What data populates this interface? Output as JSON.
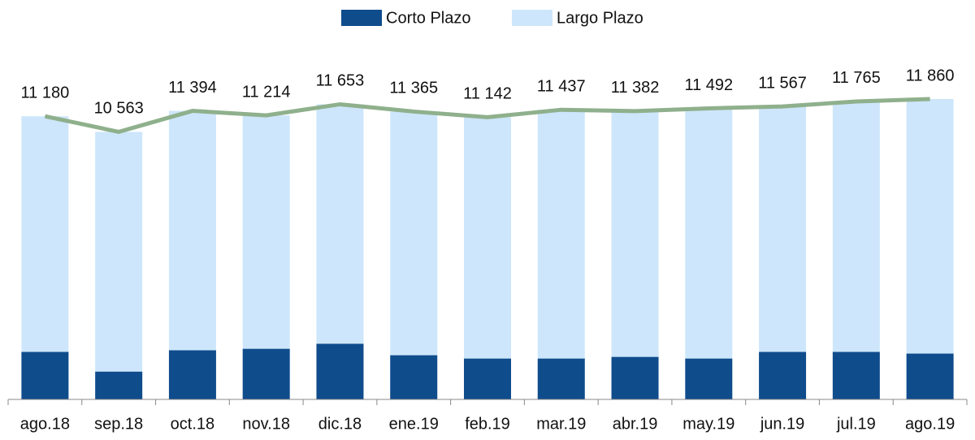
{
  "chart_data": {
    "type": "bar",
    "stacked": true,
    "categories": [
      "ago.18",
      "sep.18",
      "oct.18",
      "nov.18",
      "dic.18",
      "ene.19",
      "feb.19",
      "mar.19",
      "abr.19",
      "may.19",
      "jun.19",
      "jul.19",
      "ago.19"
    ],
    "series": [
      {
        "name": "Corto Plazo",
        "color": "#0f4c8c",
        "values": [
          1875,
          1100,
          1940,
          2000,
          2200,
          1745,
          1615,
          1615,
          1680,
          1615,
          1875,
          1875,
          1810
        ]
      },
      {
        "name": "Largo Plazo",
        "color": "#cde6fb",
        "values": [
          9305,
          9463,
          9454,
          9214,
          9453,
          9620,
          9527,
          9822,
          9702,
          9877,
          9692,
          9890,
          10050
        ]
      }
    ],
    "total": {
      "type": "line",
      "color": "#8fb08c",
      "values": [
        11180,
        10563,
        11394,
        11214,
        11653,
        11365,
        11142,
        11437,
        11382,
        11492,
        11567,
        11765,
        11860
      ],
      "value_labels": [
        "11 180",
        "10 563",
        "11 394",
        "11 214",
        "11 653",
        "11 365",
        "11 142",
        "11 437",
        "11 382",
        "11 492",
        "11 567",
        "11 765",
        "11 860"
      ]
    },
    "legend": "top"
  }
}
